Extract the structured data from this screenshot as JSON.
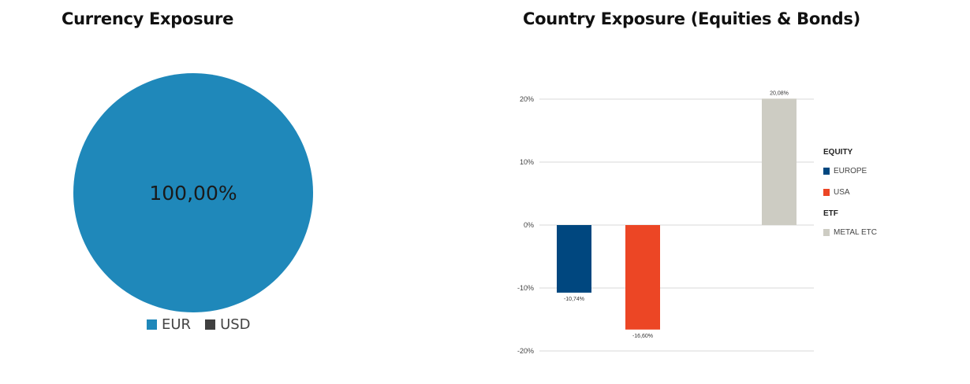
{
  "chart_data": [
    {
      "type": "pie",
      "title": "Currency Exposure",
      "slices": [
        {
          "label": "EUR",
          "value": 100.0,
          "display": "100,00%",
          "color": "#1f88ba"
        },
        {
          "label": "USD",
          "value": 0.0,
          "display": "",
          "color": "#404040"
        }
      ],
      "legend": {
        "position": "bottom"
      }
    },
    {
      "type": "bar",
      "title": "Country Exposure (Equities & Bonds)",
      "ylim": [
        -20,
        20
      ],
      "yticks": [
        20,
        10,
        0,
        -10,
        -20
      ],
      "ytick_labels": [
        "20%",
        "10%",
        "0%",
        "-10%",
        "-20%"
      ],
      "grid": true,
      "legend": {
        "position": "right",
        "groups": [
          {
            "title": "EQUITY",
            "entries": [
              "EUROPE",
              "USA"
            ]
          },
          {
            "title": "ETF",
            "entries": [
              "METAL ETC"
            ]
          }
        ]
      },
      "series": [
        {
          "name": "EUROPE",
          "value": -10.74,
          "label": "-10,74%",
          "color": "#00477f"
        },
        {
          "name": "USA",
          "value": -16.6,
          "label": "-16,60%",
          "color": "#ec4625"
        },
        {
          "name": "METAL ETC",
          "value": 20.08,
          "label": "20,08%",
          "color": "#cdccc3"
        }
      ]
    }
  ]
}
